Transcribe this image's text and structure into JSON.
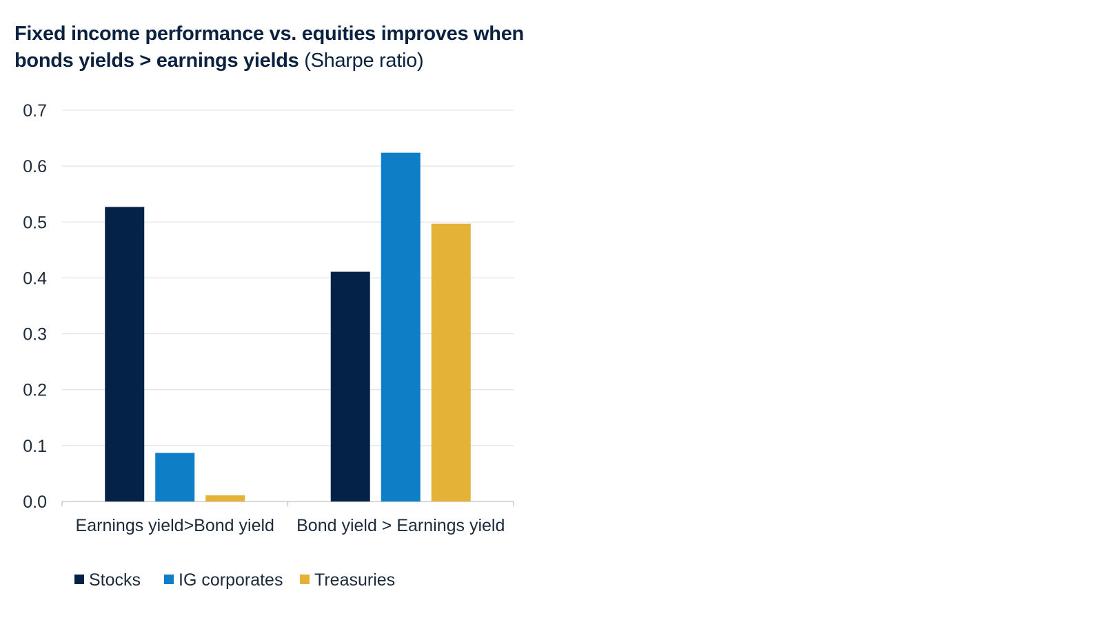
{
  "title": {
    "bold_line1": "Fixed income performance vs. equities improves when",
    "bold_line2": "bonds yields > earnings yields",
    "suffix": "(Sharpe ratio)"
  },
  "chart_data": {
    "type": "bar",
    "categories": [
      "Earnings yield>Bond yield",
      "Bond yield > Earnings yield"
    ],
    "series": [
      {
        "name": "Stocks",
        "color": "#042147",
        "values": [
          0.527,
          0.411
        ]
      },
      {
        "name": "IG corporates",
        "color": "#0e7ec7",
        "values": [
          0.087,
          0.624
        ]
      },
      {
        "name": "Treasuries",
        "color": "#e3b236",
        "values": [
          0.011,
          0.497
        ]
      }
    ],
    "ylim": [
      0,
      0.7
    ],
    "yticks": [
      "0.0",
      "0.1",
      "0.2",
      "0.3",
      "0.4",
      "0.5",
      "0.6",
      "0.7"
    ],
    "grid": true,
    "legend_position": "bottom"
  }
}
